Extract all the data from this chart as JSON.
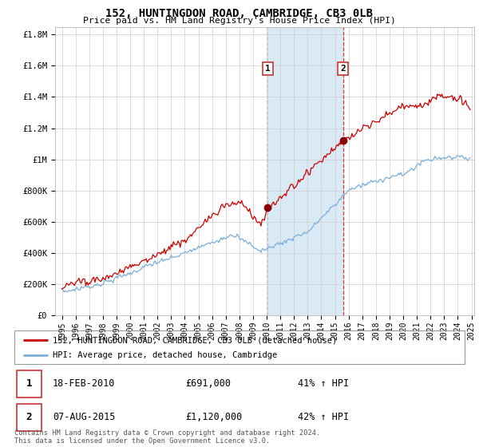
{
  "title": "152, HUNTINGDON ROAD, CAMBRIDGE, CB3 0LB",
  "subtitle": "Price paid vs. HM Land Registry's House Price Index (HPI)",
  "sale1_date": "18-FEB-2010",
  "sale1_price": "£691,000",
  "sale1_pct": "41%",
  "sale2_date": "07-AUG-2015",
  "sale2_price": "£1,120,000",
  "sale2_pct": "42%",
  "red_line_color": "#cc0000",
  "blue_line_color": "#7aaedc",
  "shade_color": "#daeaf5",
  "marker_color": "#880000",
  "vline1_color": "#b0c8e0",
  "vline2_color": "#dd3333",
  "legend_label1": "152, HUNTINGDON ROAD, CAMBRIDGE, CB3 0LB (detached house)",
  "legend_label2": "HPI: Average price, detached house, Cambridge",
  "footer": "Contains HM Land Registry data © Crown copyright and database right 2024.\nThis data is licensed under the Open Government Licence v3.0.",
  "ylim": [
    0,
    1850000
  ],
  "yticks": [
    0,
    200000,
    400000,
    600000,
    800000,
    1000000,
    1200000,
    1400000,
    1600000,
    1800000
  ],
  "ytick_labels": [
    "£0",
    "£200K",
    "£400K",
    "£600K",
    "£800K",
    "£1M",
    "£1.2M",
    "£1.4M",
    "£1.6M",
    "£1.8M"
  ],
  "start_year": 1995,
  "end_year": 2025,
  "sale1_t": 2010.083,
  "sale2_t": 2015.583
}
